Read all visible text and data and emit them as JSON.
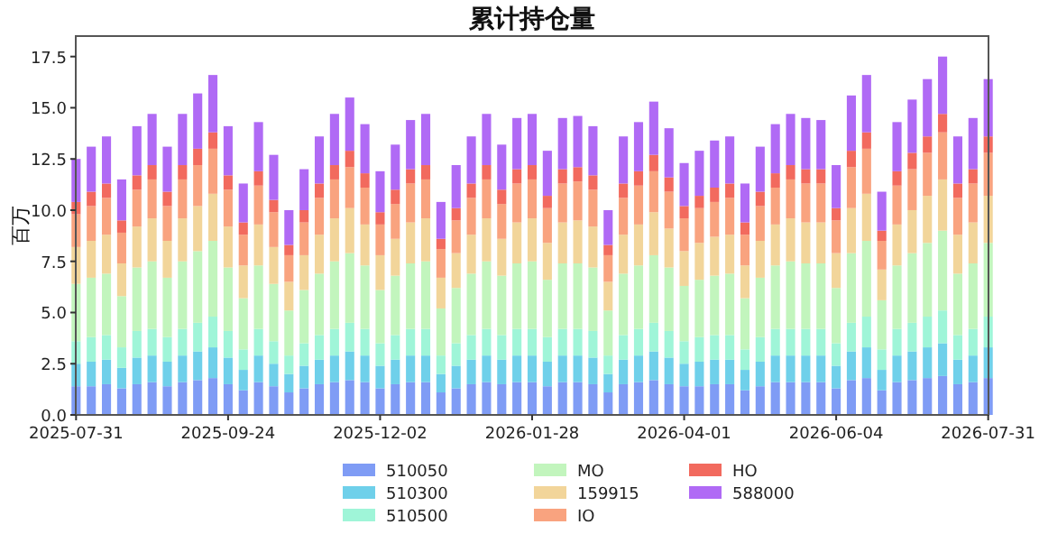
{
  "chart_data": {
    "type": "bar",
    "stacked": true,
    "title": "累计持仓量",
    "ylabel": "百万",
    "categories": [
      "2025-07-31",
      null,
      null,
      null,
      null,
      null,
      null,
      null,
      null,
      null,
      "2025-09-24",
      null,
      null,
      null,
      null,
      null,
      null,
      null,
      null,
      null,
      "2025-12-02",
      null,
      null,
      null,
      null,
      null,
      null,
      null,
      null,
      null,
      "2026-01-28",
      null,
      null,
      null,
      null,
      null,
      null,
      null,
      null,
      null,
      "2026-04-01",
      null,
      null,
      null,
      null,
      null,
      null,
      null,
      null,
      null,
      "2026-06-04",
      null,
      null,
      null,
      null,
      null,
      null,
      null,
      null,
      null,
      "2026-07-31"
    ],
    "ylim": [
      0,
      18.5
    ],
    "yticks": [
      {
        "value": 0,
        "label": "0.0"
      },
      {
        "value": 2.5,
        "label": "2.5"
      },
      {
        "value": 5,
        "label": "5.0"
      },
      {
        "value": 7.5,
        "label": "7.5"
      },
      {
        "value": 10,
        "label": "10.0"
      },
      {
        "value": 12.5,
        "label": "12.5"
      },
      {
        "value": 15,
        "label": "15.0"
      },
      {
        "value": 17.5,
        "label": "17.5"
      }
    ],
    "legend": "bottom",
    "series": [
      {
        "name": "510050",
        "color": "#7f9cf5",
        "values": [
          1.4,
          1.4,
          1.5,
          1.3,
          1.5,
          1.6,
          1.4,
          1.6,
          1.7,
          1.8,
          1.5,
          1.2,
          1.6,
          1.4,
          1.1,
          1.3,
          1.5,
          1.6,
          1.7,
          1.6,
          1.3,
          1.5,
          1.6,
          1.6,
          1.1,
          1.3,
          1.5,
          1.6,
          1.5,
          1.6,
          1.6,
          1.4,
          1.6,
          1.6,
          1.5,
          1.1,
          1.5,
          1.6,
          1.7,
          1.5,
          1.4,
          1.4,
          1.5,
          1.5,
          1.2,
          1.4,
          1.6,
          1.6,
          1.6,
          1.6,
          1.3,
          1.7,
          1.8,
          1.2,
          1.6,
          1.7,
          1.8,
          1.9,
          1.5,
          1.6,
          1.8
        ]
      },
      {
        "name": "510300",
        "color": "#6fd0ea",
        "values": [
          1.1,
          1.2,
          1.2,
          1.0,
          1.3,
          1.3,
          1.2,
          1.3,
          1.4,
          1.5,
          1.3,
          1.0,
          1.3,
          1.1,
          0.9,
          1.1,
          1.2,
          1.3,
          1.4,
          1.3,
          1.1,
          1.2,
          1.3,
          1.3,
          0.9,
          1.1,
          1.2,
          1.3,
          1.2,
          1.3,
          1.3,
          1.2,
          1.3,
          1.3,
          1.3,
          0.9,
          1.2,
          1.3,
          1.4,
          1.3,
          1.1,
          1.2,
          1.2,
          1.2,
          1.0,
          1.2,
          1.3,
          1.3,
          1.3,
          1.3,
          1.1,
          1.4,
          1.5,
          1.0,
          1.3,
          1.4,
          1.5,
          1.6,
          1.2,
          1.3,
          1.5
        ]
      },
      {
        "name": "510500",
        "color": "#9ff5d8",
        "values": [
          1.1,
          1.2,
          1.2,
          1.0,
          1.3,
          1.3,
          1.2,
          1.3,
          1.4,
          1.5,
          1.3,
          1.0,
          1.3,
          1.1,
          0.9,
          1.1,
          1.2,
          1.3,
          1.4,
          1.3,
          1.1,
          1.2,
          1.3,
          1.3,
          0.9,
          1.1,
          1.2,
          1.3,
          1.2,
          1.3,
          1.3,
          1.2,
          1.3,
          1.3,
          1.3,
          0.9,
          1.2,
          1.3,
          1.4,
          1.3,
          1.1,
          1.2,
          1.2,
          1.2,
          1.0,
          1.2,
          1.3,
          1.3,
          1.3,
          1.3,
          1.1,
          1.4,
          1.5,
          1.0,
          1.3,
          1.4,
          1.5,
          1.6,
          1.2,
          1.3,
          1.5
        ]
      },
      {
        "name": "MO",
        "color": "#c2f5bd",
        "values": [
          2.8,
          2.9,
          3.0,
          2.5,
          3.1,
          3.3,
          2.9,
          3.3,
          3.5,
          3.7,
          3.1,
          2.5,
          3.1,
          2.8,
          2.2,
          2.6,
          3.0,
          3.3,
          3.4,
          3.1,
          2.6,
          2.9,
          3.2,
          3.3,
          2.3,
          2.7,
          3.0,
          3.3,
          2.9,
          3.2,
          3.3,
          2.8,
          3.2,
          3.2,
          3.1,
          2.2,
          3.0,
          3.1,
          3.3,
          3.1,
          2.7,
          2.8,
          2.9,
          3.0,
          2.5,
          2.9,
          3.1,
          3.3,
          3.2,
          3.2,
          2.7,
          3.4,
          3.7,
          2.4,
          3.1,
          3.4,
          3.6,
          3.9,
          3.0,
          3.2,
          3.6
        ]
      },
      {
        "name": "159915",
        "color": "#f2d59a",
        "values": [
          1.8,
          1.8,
          1.9,
          1.6,
          2.0,
          2.1,
          1.8,
          2.1,
          2.2,
          2.3,
          2.0,
          1.6,
          2.0,
          1.8,
          1.4,
          1.7,
          1.9,
          2.1,
          2.2,
          2.0,
          1.7,
          1.8,
          2.0,
          2.1,
          1.5,
          1.7,
          1.9,
          2.1,
          1.8,
          2.0,
          2.1,
          1.8,
          2.0,
          2.1,
          2.0,
          1.4,
          1.9,
          2.0,
          2.1,
          1.9,
          1.7,
          1.8,
          1.9,
          1.9,
          1.6,
          1.8,
          2.0,
          2.1,
          2.0,
          2.0,
          1.7,
          2.2,
          2.3,
          1.5,
          2.0,
          2.1,
          2.3,
          2.5,
          1.9,
          2.0,
          2.3
        ]
      },
      {
        "name": "IO",
        "color": "#f9a37f",
        "values": [
          1.6,
          1.7,
          1.8,
          1.5,
          1.8,
          1.9,
          1.7,
          1.9,
          2.0,
          2.2,
          1.8,
          1.5,
          1.9,
          1.7,
          1.3,
          1.6,
          1.8,
          1.9,
          2.0,
          1.8,
          1.5,
          1.7,
          1.9,
          1.9,
          1.4,
          1.6,
          1.8,
          1.9,
          1.7,
          1.9,
          1.9,
          1.7,
          1.9,
          1.9,
          1.8,
          1.3,
          1.8,
          1.9,
          2.0,
          1.8,
          1.6,
          1.7,
          1.7,
          1.8,
          1.5,
          1.7,
          1.8,
          1.9,
          1.9,
          1.9,
          1.6,
          2.0,
          2.2,
          1.4,
          1.9,
          2.0,
          2.1,
          2.3,
          1.8,
          1.9,
          2.1
        ]
      },
      {
        "name": "HO",
        "color": "#f26a5e",
        "values": [
          0.6,
          0.7,
          0.7,
          0.6,
          0.7,
          0.7,
          0.7,
          0.7,
          0.8,
          0.8,
          0.7,
          0.6,
          0.7,
          0.6,
          0.5,
          0.6,
          0.7,
          0.7,
          0.8,
          0.7,
          0.6,
          0.7,
          0.7,
          0.7,
          0.5,
          0.6,
          0.7,
          0.7,
          0.7,
          0.7,
          0.7,
          0.6,
          0.7,
          0.7,
          0.7,
          0.5,
          0.7,
          0.7,
          0.8,
          0.7,
          0.6,
          0.6,
          0.7,
          0.7,
          0.6,
          0.7,
          0.7,
          0.7,
          0.7,
          0.7,
          0.6,
          0.8,
          0.8,
          0.5,
          0.7,
          0.8,
          0.8,
          0.9,
          0.7,
          0.7,
          0.8
        ]
      },
      {
        "name": "588000",
        "color": "#b06af5",
        "values": [
          2.1,
          2.2,
          2.3,
          2.0,
          2.4,
          2.5,
          2.2,
          2.5,
          2.7,
          2.8,
          2.4,
          1.9,
          2.4,
          2.2,
          1.7,
          2.0,
          2.3,
          2.5,
          2.6,
          2.4,
          2.0,
          2.2,
          2.4,
          2.5,
          1.8,
          2.1,
          2.3,
          2.5,
          2.2,
          2.5,
          2.5,
          2.2,
          2.5,
          2.5,
          2.4,
          1.7,
          2.3,
          2.4,
          2.6,
          2.4,
          2.1,
          2.2,
          2.3,
          2.3,
          1.9,
          2.2,
          2.4,
          2.5,
          2.5,
          2.4,
          2.1,
          2.7,
          2.8,
          1.9,
          2.4,
          2.6,
          2.8,
          2.8,
          2.3,
          2.5,
          2.8
        ]
      }
    ]
  }
}
